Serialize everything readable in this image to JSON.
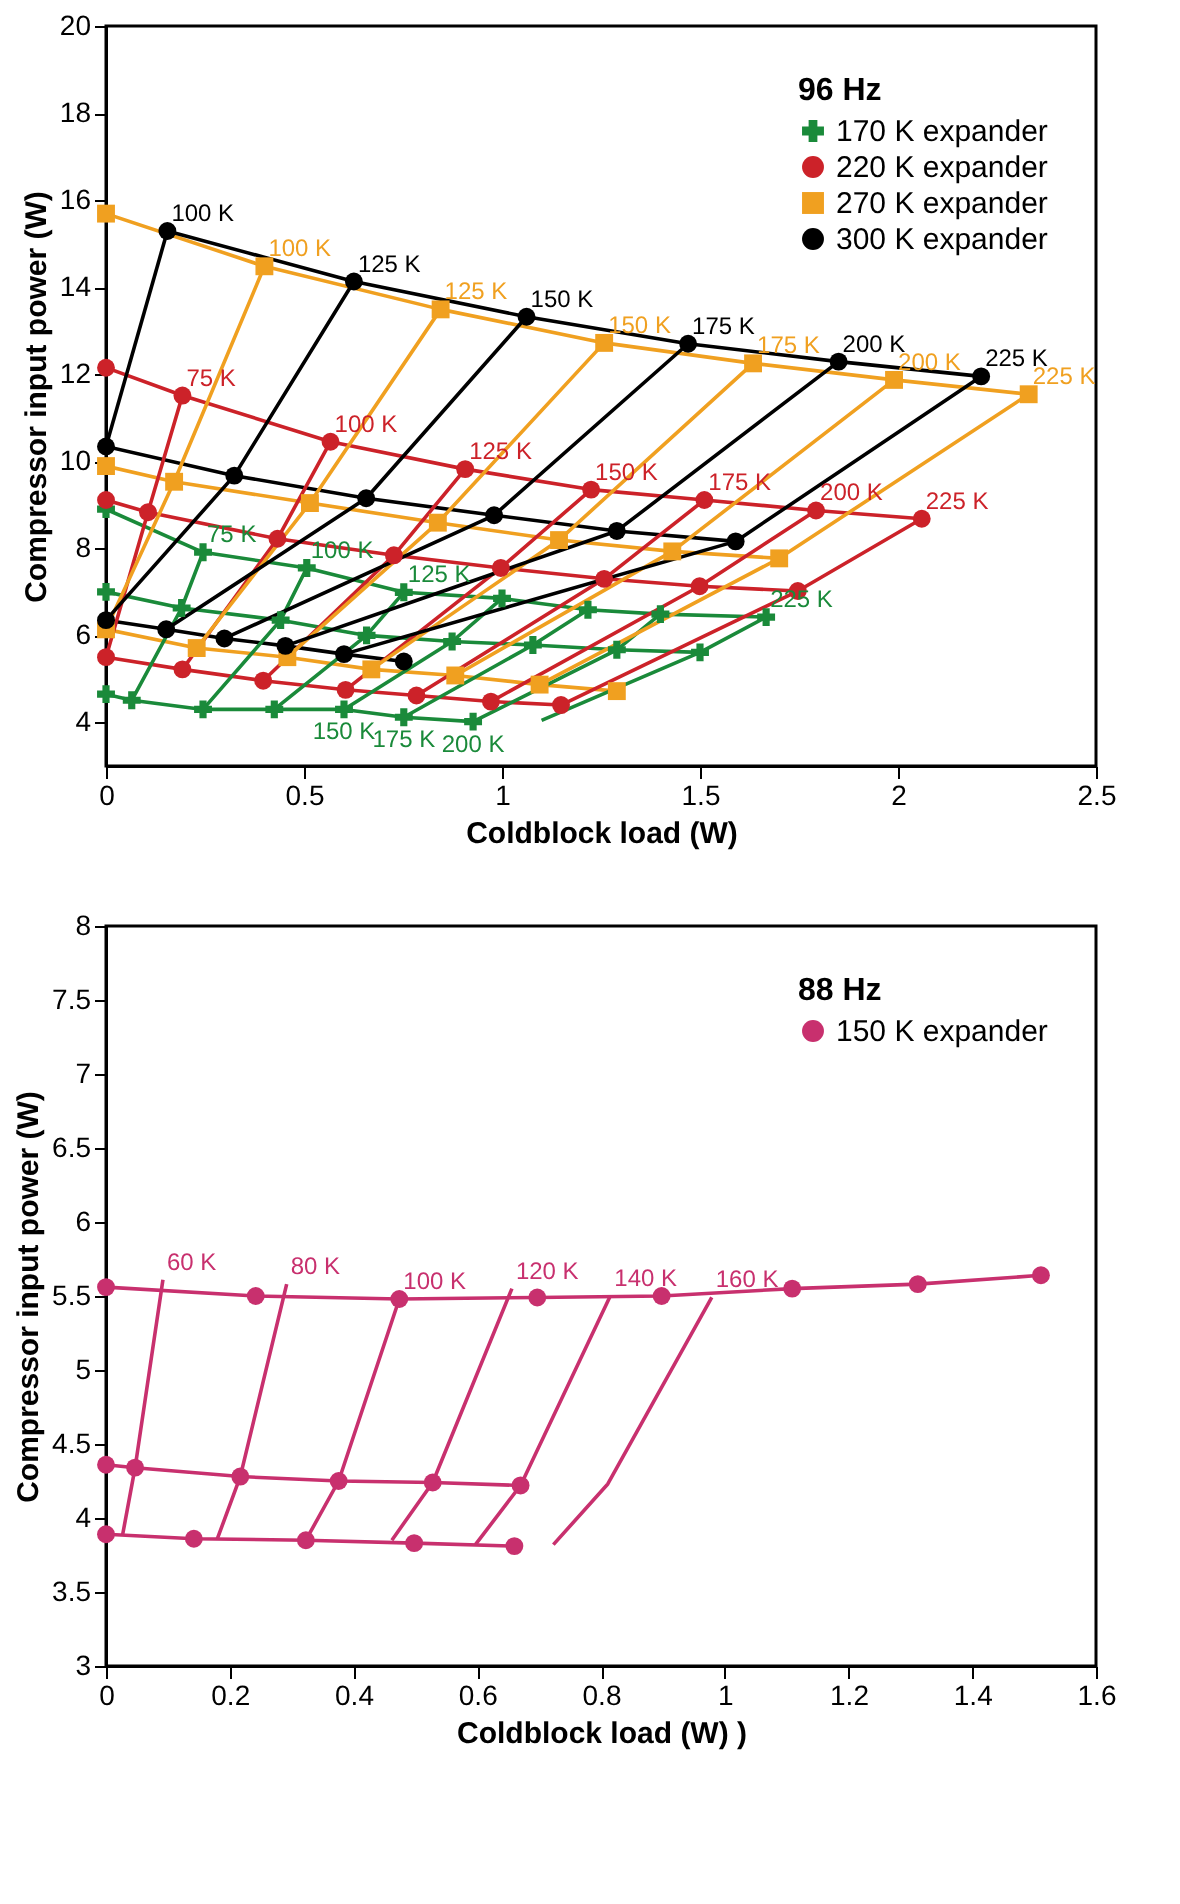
{
  "chart_data": [
    {
      "type": "line",
      "xlabel": "Coldblock load (W)",
      "ylabel": "Compressor input power (W)",
      "legend_title": "96 Hz",
      "legend": "top right",
      "xlim": [
        0,
        2.5
      ],
      "xticks": [
        0,
        0.5,
        1,
        1.5,
        2,
        2.5
      ],
      "ylim": [
        3,
        20
      ],
      "yticks": [
        4,
        6,
        8,
        10,
        12,
        14,
        16,
        18,
        20
      ],
      "series": [
        {
          "name": "170 K expander",
          "color": "#1a8a3a",
          "marker": "cross",
          "x": [
            0,
            0.245,
            0.507,
            0.752,
            1.0,
            1.217,
            1.4,
            1.667
          ],
          "values": [
            8.9,
            7.91,
            7.55,
            6.99,
            6.85,
            6.59,
            6.49,
            6.42
          ]
        },
        {
          "color": "#1a8a3a",
          "marker": "cross",
          "x": [
            0,
            0.191,
            0.441,
            0.658,
            0.874,
            1.078,
            1.29,
            1.5
          ],
          "values": [
            7.0,
            6.63,
            6.35,
            6.0,
            5.86,
            5.78,
            5.67,
            5.61
          ]
        },
        {
          "color": "#1a8a3a",
          "marker": "cross",
          "x": [
            0,
            0.065,
            0.245,
            0.425,
            0.601,
            0.752,
            0.927
          ],
          "values": [
            4.65,
            4.51,
            4.3,
            4.3,
            4.3,
            4.12,
            4.02
          ]
        },
        {
          "name": "220 K expander",
          "color": "#cc2229",
          "marker": "circle",
          "x": [
            0,
            0.193,
            0.567,
            0.907,
            1.225,
            1.511,
            1.793,
            2.06
          ],
          "values": [
            12.15,
            11.51,
            10.45,
            9.82,
            9.35,
            9.11,
            8.87,
            8.68
          ]
        },
        {
          "color": "#cc2229",
          "marker": "circle",
          "x": [
            0,
            0.106,
            0.433,
            0.727,
            0.997,
            1.258,
            1.499,
            1.747
          ],
          "values": [
            9.11,
            8.83,
            8.22,
            7.84,
            7.55,
            7.3,
            7.13,
            7.02
          ]
        },
        {
          "color": "#cc2229",
          "marker": "circle",
          "x": [
            0,
            0.193,
            0.397,
            0.605,
            0.784,
            0.972,
            1.149
          ],
          "values": [
            5.5,
            5.22,
            4.96,
            4.75,
            4.62,
            4.48,
            4.4
          ]
        },
        {
          "name": "270 K expander",
          "color": "#f0a020",
          "marker": "square",
          "x": [
            0,
            0.4,
            0.845,
            1.258,
            1.634,
            1.99,
            2.33
          ],
          "values": [
            15.69,
            14.48,
            13.49,
            12.72,
            12.25,
            11.87,
            11.54
          ]
        },
        {
          "color": "#f0a020",
          "marker": "square",
          "x": [
            0,
            0.172,
            0.515,
            0.838,
            1.144,
            1.43,
            1.7
          ],
          "values": [
            9.89,
            9.53,
            9.04,
            8.59,
            8.19,
            7.93,
            7.77
          ]
        },
        {
          "color": "#f0a020",
          "marker": "square",
          "x": [
            0,
            0.229,
            0.458,
            0.67,
            0.882,
            1.095,
            1.29
          ],
          "values": [
            6.14,
            5.71,
            5.5,
            5.22,
            5.08,
            4.87,
            4.72
          ]
        },
        {
          "name": "300 K expander",
          "color": "#000000",
          "marker": "circle",
          "x": [
            0.155,
            0.626,
            1.062,
            1.47,
            1.85,
            2.21
          ],
          "values": [
            15.29,
            14.13,
            13.32,
            12.7,
            12.29,
            11.95
          ]
        },
        {
          "color": "#000000",
          "marker": "circle",
          "x": [
            0,
            0.324,
            0.657,
            0.98,
            1.29,
            1.59
          ],
          "values": [
            10.34,
            9.67,
            9.15,
            8.76,
            8.4,
            8.16
          ]
        },
        {
          "color": "#000000",
          "marker": "circle",
          "x": [
            0,
            0.152,
            0.299,
            0.453,
            0.601,
            0.752
          ],
          "values": [
            6.35,
            6.14,
            5.93,
            5.76,
            5.57,
            5.4
          ]
        },
        {
          "name": "75 K",
          "color": "#1a8a3a",
          "marker": "none",
          "x": [
            0.065,
            0.191,
            0.245
          ],
          "values": [
            4.51,
            6.63,
            7.91
          ]
        },
        {
          "name": "100 K",
          "color": "#1a8a3a",
          "marker": "none",
          "x": [
            0.245,
            0.441,
            0.507
          ],
          "values": [
            4.3,
            6.35,
            7.55
          ]
        },
        {
          "name": "125 K",
          "color": "#1a8a3a",
          "marker": "none",
          "x": [
            0.425,
            0.658,
            0.752
          ],
          "values": [
            4.3,
            6.0,
            6.99
          ]
        },
        {
          "name": "150 K",
          "color": "#1a8a3a",
          "marker": "none",
          "x": [
            1.0,
            0.874,
            0.601
          ],
          "values": [
            6.85,
            5.86,
            4.3
          ]
        },
        {
          "name": "175 K",
          "color": "#1a8a3a",
          "marker": "none",
          "x": [
            1.217,
            1.078,
            0.752
          ],
          "values": [
            6.59,
            5.78,
            4.12
          ]
        },
        {
          "name": "200 K",
          "color": "#1a8a3a",
          "marker": "none",
          "x": [
            1.4,
            1.29,
            0.927
          ],
          "values": [
            6.49,
            5.67,
            4.02
          ]
        },
        {
          "name": "225 K",
          "color": "#1a8a3a",
          "marker": "none",
          "x": [
            1.1,
            1.5,
            1.667
          ],
          "values": [
            4.05,
            5.61,
            6.42
          ]
        },
        {
          "name": "75 K",
          "color": "#cc2229",
          "marker": "none",
          "x": [
            0,
            0.106,
            0.193
          ],
          "values": [
            5.5,
            8.83,
            11.51
          ]
        },
        {
          "name": "100 K",
          "color": "#cc2229",
          "marker": "none",
          "x": [
            0.193,
            0.433,
            0.567
          ],
          "values": [
            5.22,
            8.22,
            10.45
          ]
        },
        {
          "name": "125 K",
          "color": "#cc2229",
          "marker": "none",
          "x": [
            0.397,
            0.727,
            0.907
          ],
          "values": [
            4.96,
            7.84,
            9.82
          ]
        },
        {
          "name": "150 K",
          "color": "#cc2229",
          "marker": "none",
          "x": [
            0.605,
            0.997,
            1.225
          ],
          "values": [
            4.75,
            7.55,
            9.35
          ]
        },
        {
          "name": "175 K",
          "color": "#cc2229",
          "marker": "none",
          "x": [
            0.784,
            1.258,
            1.511
          ],
          "values": [
            4.62,
            7.3,
            9.11
          ]
        },
        {
          "name": "200 K",
          "color": "#cc2229",
          "marker": "none",
          "x": [
            0.972,
            1.499,
            1.793
          ],
          "values": [
            4.48,
            7.13,
            8.87
          ]
        },
        {
          "name": "225 K",
          "color": "#cc2229",
          "marker": "none",
          "x": [
            1.149,
            1.747,
            2.06
          ],
          "values": [
            4.4,
            7.02,
            8.68
          ]
        },
        {
          "name": "100 K",
          "color": "#f0a020",
          "marker": "none",
          "x": [
            0,
            0.172,
            0.4
          ],
          "values": [
            6.14,
            9.53,
            14.48
          ]
        },
        {
          "name": "125 K",
          "color": "#f0a020",
          "marker": "none",
          "x": [
            0.229,
            0.515,
            0.845
          ],
          "values": [
            5.71,
            9.04,
            13.49
          ]
        },
        {
          "name": "150 K",
          "color": "#f0a020",
          "marker": "none",
          "x": [
            0.458,
            0.838,
            1.258
          ],
          "values": [
            5.5,
            8.59,
            12.72
          ]
        },
        {
          "name": "175 K",
          "color": "#f0a020",
          "marker": "none",
          "x": [
            0.67,
            1.144,
            1.634
          ],
          "values": [
            5.22,
            8.19,
            12.25
          ]
        },
        {
          "name": "200 K",
          "color": "#f0a020",
          "marker": "none",
          "x": [
            0.882,
            1.43,
            1.99
          ],
          "values": [
            5.08,
            7.93,
            11.87
          ]
        },
        {
          "name": "225 K",
          "color": "#f0a020",
          "marker": "none",
          "x": [
            1.095,
            1.7,
            2.33
          ],
          "values": [
            4.87,
            7.77,
            11.54
          ]
        },
        {
          "name": "100 K",
          "color": "#000000",
          "marker": "none",
          "x": [
            0,
            0.155
          ],
          "values": [
            10.34,
            15.29
          ]
        },
        {
          "name": "125 K",
          "color": "#000000",
          "marker": "none",
          "x": [
            0,
            0.324,
            0.626
          ],
          "values": [
            6.35,
            9.67,
            14.13
          ]
        },
        {
          "name": "150 K",
          "color": "#000000",
          "marker": "none",
          "x": [
            0.152,
            0.657,
            1.062
          ],
          "values": [
            6.14,
            9.15,
            13.32
          ]
        },
        {
          "name": "175 K",
          "color": "#000000",
          "marker": "none",
          "x": [
            0.299,
            0.98,
            1.47
          ],
          "values": [
            5.93,
            8.76,
            12.7
          ]
        },
        {
          "name": "200 K",
          "color": "#000000",
          "marker": "none",
          "x": [
            0.453,
            1.29,
            1.85
          ],
          "values": [
            5.76,
            8.4,
            12.29
          ]
        },
        {
          "name": "225 K",
          "color": "#000000",
          "marker": "none",
          "x": [
            0.601,
            1.59,
            2.21
          ],
          "values": [
            5.57,
            8.16,
            11.95
          ]
        }
      ]
    },
    {
      "type": "line",
      "xlabel": "Coldblock load (W) )",
      "ylabel": "Compressor input power (W)",
      "legend_title": "88 Hz",
      "legend": "top right",
      "xlim": [
        0,
        1.6
      ],
      "xticks": [
        0,
        0.2,
        0.4,
        0.6,
        0.8,
        1,
        1.2,
        1.4,
        1.6
      ],
      "ylim": [
        3,
        8
      ],
      "yticks": [
        3,
        3.5,
        4,
        4.5,
        5,
        5.5,
        6,
        6.5,
        7,
        7.5,
        8
      ],
      "series": [
        {
          "name": "150 K expander",
          "color": "#c8306e",
          "marker": "circle",
          "x": [
            0,
            0.242,
            0.474,
            0.697,
            0.898,
            1.109,
            1.312,
            1.511
          ],
          "values": [
            5.56,
            5.5,
            5.48,
            5.49,
            5.5,
            5.55,
            5.58,
            5.64
          ]
        },
        {
          "color": "#c8306e",
          "marker": "circle",
          "x": [
            0,
            0.047,
            0.217,
            0.376,
            0.528,
            0.67
          ],
          "values": [
            4.36,
            4.34,
            4.28,
            4.25,
            4.24,
            4.22
          ]
        },
        {
          "color": "#c8306e",
          "marker": "circle",
          "x": [
            0,
            0.142,
            0.323,
            0.498,
            0.66
          ],
          "values": [
            3.89,
            3.86,
            3.85,
            3.83,
            3.81
          ]
        },
        {
          "name": "60 K",
          "color": "#c8306e",
          "marker": "none",
          "x": [
            0.027,
            0.047,
            0.092
          ],
          "values": [
            3.89,
            4.34,
            5.61
          ]
        },
        {
          "name": "80 K",
          "color": "#c8306e",
          "marker": "none",
          "x": [
            0.18,
            0.217,
            0.292
          ],
          "values": [
            3.86,
            4.28,
            5.58
          ]
        },
        {
          "name": "100 K",
          "color": "#c8306e",
          "marker": "none",
          "x": [
            0.323,
            0.376,
            0.474
          ],
          "values": [
            3.85,
            4.25,
            5.48
          ]
        },
        {
          "name": "120 K",
          "color": "#c8306e",
          "marker": "none",
          "x": [
            0.462,
            0.528,
            0.656
          ],
          "values": [
            3.85,
            4.24,
            5.55
          ]
        },
        {
          "name": "140 K",
          "color": "#c8306e",
          "marker": "none",
          "x": [
            0.597,
            0.67,
            0.815
          ],
          "values": [
            3.82,
            4.22,
            5.5
          ]
        },
        {
          "name": "160 K",
          "color": "#c8306e",
          "marker": "none",
          "x": [
            0.723,
            0.811,
            0.979
          ],
          "values": [
            3.82,
            4.23,
            5.49
          ]
        }
      ]
    }
  ]
}
